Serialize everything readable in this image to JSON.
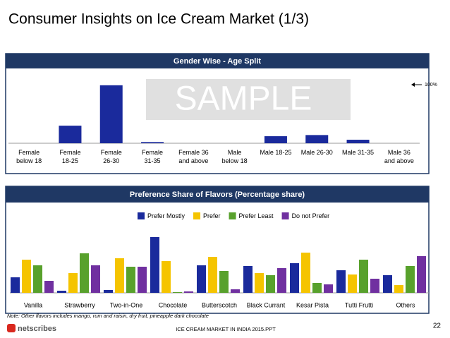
{
  "slide": {
    "title": "Consumer Insights on Ice Cream Market (1/3)",
    "watermark": "SAMPLE",
    "note": "Note: Other flavors includes mango, rum and raisin, dry fruit, pineapple dark chocolate",
    "footer": "ICE CREAM MARKET IN INDIA 2015.PPT",
    "page": "22",
    "logo": "netscribes"
  },
  "chart_data": [
    {
      "type": "bar",
      "title": "Gender Wise - Age Split",
      "color": "#1a2a9c",
      "categories": [
        "Female\nbelow 18",
        "Female\n18-25",
        "Female\n26-30",
        "Female\n31-35",
        "Female 36\nand above",
        "Male\nbelow 18",
        "Male 18-25",
        "Male 26-30",
        "Male 31-35",
        "Male 36\nand above"
      ],
      "values": [
        0,
        30,
        99,
        2,
        0,
        0,
        12,
        14,
        6,
        0
      ],
      "ylim": [
        0,
        100
      ],
      "reference": {
        "value": 100,
        "label": "100%"
      }
    },
    {
      "type": "grouped-bar",
      "title": "Preference Share of Flavors (Percentage share)",
      "categories": [
        "Vanilla",
        "Strawberry",
        "Two-in-One",
        "Chocolate",
        "Butterscotch",
        "Black Currant",
        "Kesar Pista",
        "Tutti Frutti",
        "Others"
      ],
      "series": [
        {
          "name": "Prefer Mostly",
          "color": "#1a2a9c",
          "values": [
            22,
            3,
            4,
            79,
            39,
            38,
            42,
            32,
            25
          ]
        },
        {
          "name": "Prefer",
          "color": "#f5c400",
          "values": [
            47,
            28,
            49,
            45,
            51,
            28,
            57,
            26,
            11
          ]
        },
        {
          "name": "Prefer Least",
          "color": "#58a12c",
          "values": [
            39,
            56,
            37,
            1,
            31,
            25,
            14,
            47,
            38
          ]
        },
        {
          "name": "Do not Prefer",
          "color": "#7030a0",
          "values": [
            17,
            39,
            37,
            2,
            5,
            35,
            12,
            20,
            52
          ]
        }
      ],
      "ylim": [
        0,
        80
      ]
    }
  ]
}
